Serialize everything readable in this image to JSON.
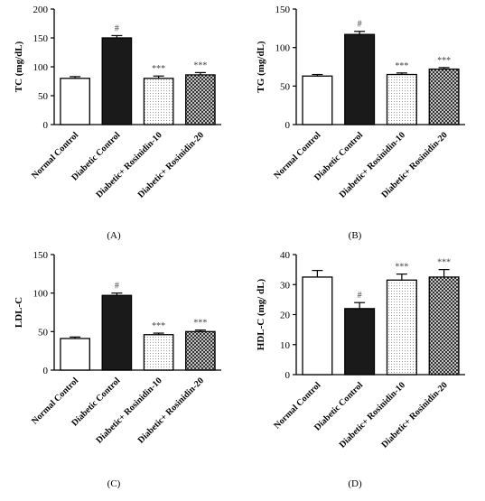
{
  "chart_data": [
    {
      "type": "bar",
      "panel_label": "(A)",
      "ylabel": "TC (mg/dL)",
      "ylim": [
        0,
        200
      ],
      "yticks": [
        0,
        50,
        100,
        150,
        200
      ],
      "categories": [
        "Normal Control",
        "Diabetic Control",
        "Diabetic+ Rosinidin-10",
        "Diabetic+ Rosinidin-20"
      ],
      "values": [
        80,
        150,
        80,
        86
      ],
      "errors": [
        3,
        4,
        4,
        4
      ],
      "bar_fills": [
        "open",
        "solid",
        "dotted",
        "crosshatch"
      ],
      "annotations": [
        "",
        "#",
        "***",
        "***"
      ]
    },
    {
      "type": "bar",
      "panel_label": "(B)",
      "ylabel": "TG (mg/dL)",
      "ylim": [
        0,
        150
      ],
      "yticks": [
        0,
        50,
        100,
        150
      ],
      "categories": [
        "Normal Control",
        "Diabetic Control",
        "Diabetic+ Rosinidin-10",
        "Diabetic+ Rosinidin-20"
      ],
      "values": [
        63,
        117,
        65,
        72
      ],
      "errors": [
        2,
        4,
        2,
        2
      ],
      "bar_fills": [
        "open",
        "solid",
        "dotted",
        "crosshatch"
      ],
      "annotations": [
        "",
        "#",
        "***",
        "***"
      ]
    },
    {
      "type": "bar",
      "panel_label": "(C)",
      "ylabel": "LDL-C",
      "ylim": [
        0,
        150
      ],
      "yticks": [
        0,
        50,
        100,
        150
      ],
      "categories": [
        "Normal Control",
        "Diabetic Control",
        "Diabetic+ Rosinidin-10",
        "Diabetic+ Rosinidin-20"
      ],
      "values": [
        41,
        97,
        46,
        50
      ],
      "errors": [
        2,
        3,
        2,
        2
      ],
      "bar_fills": [
        "open",
        "solid",
        "dotted",
        "crosshatch"
      ],
      "annotations": [
        "",
        "#",
        "***",
        "***"
      ]
    },
    {
      "type": "bar",
      "panel_label": "(D)",
      "ylabel": "HDL-C (mg/ dL)",
      "ylim": [
        0,
        40
      ],
      "yticks": [
        0,
        10,
        20,
        30,
        40
      ],
      "categories": [
        "Normal Control",
        "Diabetic Control",
        "Diabetic+ Rosinidin-10",
        "Diabetic+ Rosinidin-20"
      ],
      "values": [
        32.5,
        22,
        31.5,
        32.5
      ],
      "errors": [
        2.2,
        2,
        2,
        2.5
      ],
      "bar_fills": [
        "open",
        "solid",
        "dotted",
        "crosshatch"
      ],
      "annotations": [
        "",
        "#",
        "***",
        "***"
      ]
    }
  ]
}
